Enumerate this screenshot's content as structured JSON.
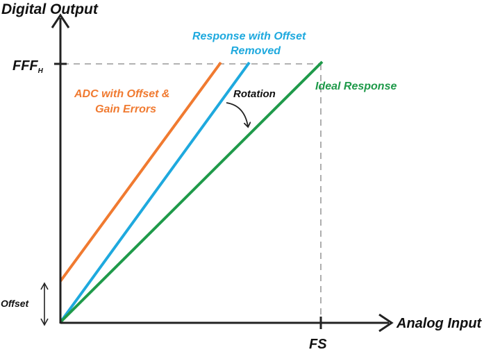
{
  "axes": {
    "y_title": "Digital Output",
    "x_title": "Analog Input",
    "y_tick": "FFF",
    "y_tick_subscript": "H",
    "x_tick": "FS"
  },
  "lines": {
    "adc": {
      "label_line1": "ADC with Offset &",
      "label_line2": "Gain Errors",
      "color": "#f07a30"
    },
    "removed": {
      "label_line1": "Response with Offset",
      "label_line2": "Removed",
      "color": "#1ea9de"
    },
    "ideal": {
      "label": "Ideal Response",
      "color": "#1f9a4a"
    }
  },
  "annotations": {
    "rotation": "Rotation",
    "offset": "Offset"
  },
  "colors": {
    "axis": "#333333",
    "guide": "#999999"
  }
}
